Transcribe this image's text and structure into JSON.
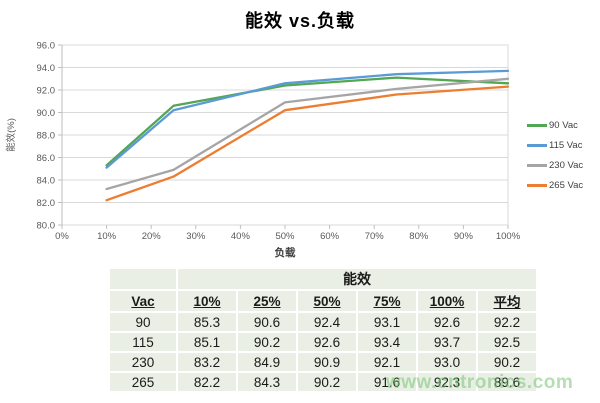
{
  "chart_data": {
    "type": "line",
    "title": "能效 vs.负载",
    "xlabel": "负载",
    "ylabel": "能效(%)",
    "xlim": [
      0,
      100
    ],
    "ylim": [
      80,
      96
    ],
    "grid": true,
    "legend_position": "right",
    "x_tick_labels": [
      "0%",
      "10%",
      "20%",
      "30%",
      "40%",
      "50%",
      "60%",
      "70%",
      "80%",
      "90%",
      "100%"
    ],
    "y_tick_labels": [
      "96.0",
      "94.0",
      "92.0",
      "90.0",
      "88.0",
      "86.0",
      "84.0",
      "82.0",
      "80.0"
    ],
    "x": [
      10,
      25,
      50,
      75,
      100
    ],
    "series": [
      {
        "name": "90 Vac",
        "color": "#53A654",
        "values": [
          85.3,
          90.6,
          92.4,
          93.1,
          92.6
        ]
      },
      {
        "name": "115 Vac",
        "color": "#5B9BD5",
        "values": [
          85.1,
          90.2,
          92.6,
          93.4,
          93.7
        ]
      },
      {
        "name": "230 Vac",
        "color": "#A5A5A5",
        "values": [
          83.2,
          84.9,
          90.9,
          92.1,
          93.0
        ]
      },
      {
        "name": "265 Vac",
        "color": "#ED7D31",
        "values": [
          82.2,
          84.3,
          90.2,
          91.6,
          92.3
        ]
      }
    ],
    "colors": {
      "gridline": "#d9d9d9",
      "axis": "#bfbfbf",
      "tick_text": "#595959",
      "axis_title_text": "#3f3f3f"
    }
  },
  "table": {
    "title": "能效",
    "columns": [
      "Vac",
      "10%",
      "25%",
      "50%",
      "75%",
      "100%",
      "平均"
    ],
    "rows": [
      [
        "90",
        "85.3",
        "90.6",
        "92.4",
        "93.1",
        "92.6",
        "92.2"
      ],
      [
        "115",
        "85.1",
        "90.2",
        "92.6",
        "93.4",
        "93.7",
        "92.5"
      ],
      [
        "230",
        "83.2",
        "84.9",
        "90.9",
        "92.1",
        "93.0",
        "90.2"
      ],
      [
        "265",
        "82.2",
        "84.3",
        "90.2",
        "91.6",
        "92.3",
        "89.6"
      ]
    ]
  },
  "watermark": "www.cntronics.com"
}
